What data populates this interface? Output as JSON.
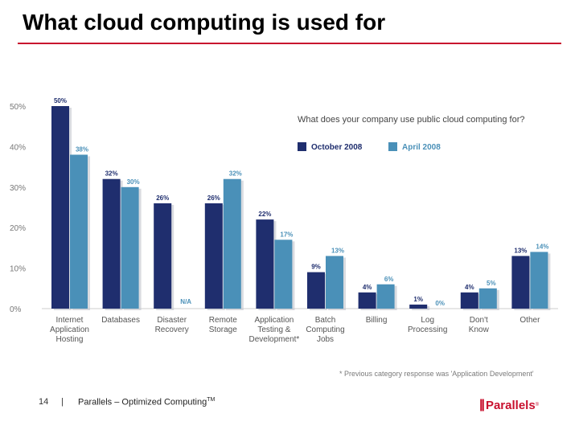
{
  "slide": {
    "title": "What cloud computing is used for",
    "footnote": "*   Previous category response was 'Application Development'",
    "page_number": "14",
    "separator": "|",
    "footer_text": "Parallels – Optimized Computing",
    "footer_tm": "TM",
    "logo_text": "Parallels",
    "logo_bars": "||",
    "logo_tm": "®"
  },
  "chart_data": {
    "type": "bar",
    "title": "What does your company use public cloud computing for?",
    "categories": [
      [
        "Internet",
        "Application",
        "Hosting"
      ],
      [
        "Databases"
      ],
      [
        "Disaster",
        "Recovery"
      ],
      [
        "Remote",
        "Storage"
      ],
      [
        "Application",
        "Testing &",
        "Development*"
      ],
      [
        "Batch",
        "Computing",
        "Jobs"
      ],
      [
        "Billing"
      ],
      [
        "Log",
        "Processing"
      ],
      [
        "Don't",
        "Know"
      ],
      [
        "Other"
      ]
    ],
    "series": [
      {
        "name": "October 2008",
        "color": "#1f2e6e",
        "values": [
          50,
          32,
          26,
          26,
          22,
          9,
          4,
          1,
          4,
          13
        ],
        "labels": [
          "50%",
          "32%",
          "26%",
          "26%",
          "22%",
          "9%",
          "4%",
          "1%",
          "4%",
          "13%"
        ]
      },
      {
        "name": "April 2008",
        "color": "#4a90b8",
        "values": [
          38,
          30,
          null,
          32,
          17,
          13,
          6,
          0,
          5,
          14
        ],
        "labels": [
          "38%",
          "30%",
          "N/A",
          "32%",
          "17%",
          "13%",
          "6%",
          "0%",
          "5%",
          "14%"
        ]
      }
    ],
    "yticks": [
      0,
      10,
      20,
      30,
      40,
      50
    ],
    "ytick_labels": [
      "0%",
      "10%",
      "20%",
      "30%",
      "40%",
      "50%"
    ],
    "ylim": [
      0,
      50
    ],
    "grid": false,
    "legend": "top-right",
    "xlabel": "",
    "ylabel": ""
  }
}
